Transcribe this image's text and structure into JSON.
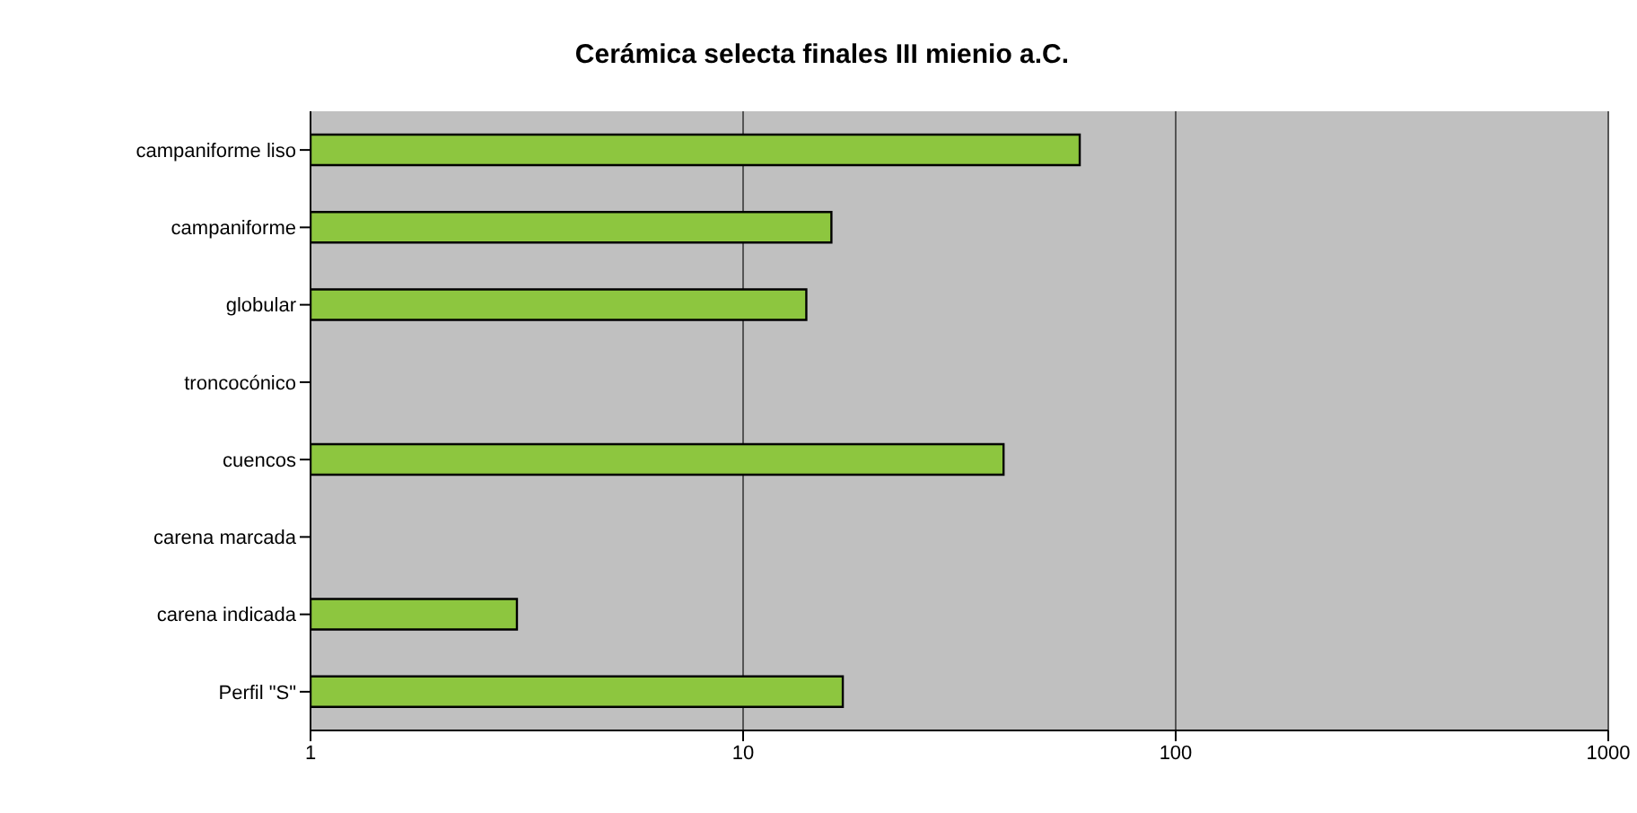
{
  "chart_data": {
    "type": "bar",
    "orientation": "horizontal",
    "title": "Cerámica selecta finales III mienio a.C.",
    "categories": [
      "campaniforme liso",
      "campaniforme",
      "globular",
      "troncocónico",
      "cuencos",
      "carena marcada",
      "carena indicada",
      "Perfil \"S\""
    ],
    "values": [
      60,
      16,
      14,
      null,
      40,
      null,
      3,
      17
    ],
    "color": "#8dc63f",
    "log": "x",
    "xlim": [
      1,
      1000
    ],
    "xticks": [
      1,
      10,
      100,
      1000
    ],
    "grid": "x"
  }
}
